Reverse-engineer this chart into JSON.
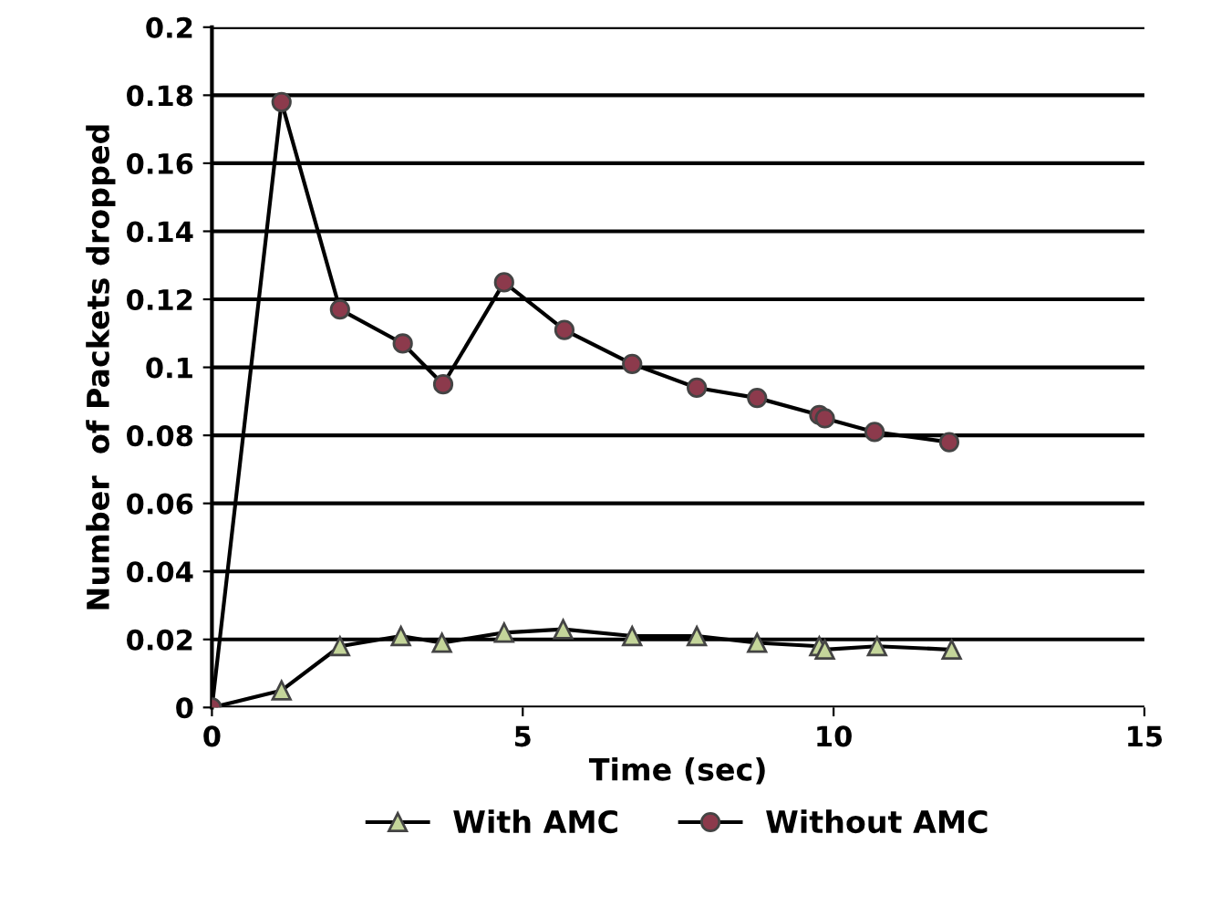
{
  "chart_data": {
    "type": "line",
    "xlabel": "Time (sec)",
    "ylabel": "Number  of Packets dropped",
    "xlim": [
      0,
      15
    ],
    "xticks": [
      0,
      5,
      10,
      15
    ],
    "ylim": [
      0,
      0.2
    ],
    "yticks": [
      0,
      0.02,
      0.04,
      0.06,
      0.08,
      0.1,
      0.12,
      0.14,
      0.16,
      0.18,
      0.2
    ],
    "grid": "y",
    "legend": "bottom",
    "line_style": "solid",
    "series": [
      {
        "name": "With AMC",
        "color": "#c4d59a",
        "marker": "triangle",
        "x": [
          0,
          1.12,
          2.06,
          3.04,
          3.7,
          4.7,
          5.65,
          6.76,
          7.8,
          8.77,
          9.77,
          9.86,
          10.7,
          11.9
        ],
        "values": [
          0,
          0.005,
          0.018,
          0.021,
          0.019,
          0.022,
          0.023,
          0.021,
          0.021,
          0.019,
          0.018,
          0.017,
          0.018,
          0.017
        ]
      },
      {
        "name": "Without AMC",
        "color": "#8c3a4c",
        "marker": "circle",
        "x": [
          0,
          1.12,
          2.06,
          3.07,
          3.72,
          4.7,
          5.67,
          6.76,
          7.8,
          8.77,
          9.77,
          9.86,
          10.66,
          11.86
        ],
        "values": [
          0,
          0.178,
          0.117,
          0.107,
          0.095,
          0.125,
          0.111,
          0.101,
          0.094,
          0.091,
          0.086,
          0.085,
          0.081,
          0.078
        ]
      }
    ]
  }
}
